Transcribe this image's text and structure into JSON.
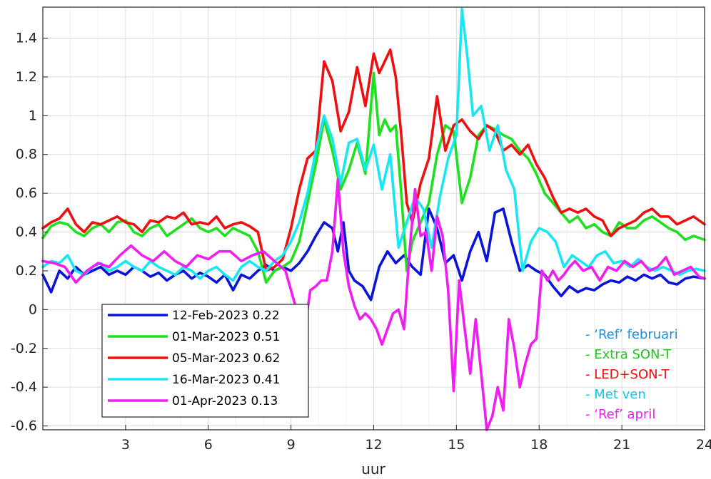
{
  "chart_data": {
    "type": "line",
    "title": "",
    "xlabel": "uur",
    "ylabel": "",
    "xlim": [
      0,
      24
    ],
    "ylim": [
      -0.62,
      1.56
    ],
    "grid": true,
    "x_ticks": [
      3,
      6,
      9,
      12,
      15,
      18,
      21,
      24
    ],
    "x_tick_labels": [
      "3",
      "6",
      "9",
      "12",
      "15",
      "18",
      "21",
      "24"
    ],
    "y_ticks": [
      -0.6,
      -0.4,
      -0.2,
      0,
      0.2,
      0.4,
      0.6,
      0.8,
      1,
      1.2,
      1.4
    ],
    "y_tick_labels": [
      "-0.6",
      "-0.4",
      "-0.2",
      "0",
      "0.2",
      "0.4",
      "0.6",
      "0.8",
      "1",
      "1.2",
      "1.4"
    ],
    "legend_position": "bottom-left",
    "series": [
      {
        "name": "12-Feb-2023",
        "legend_value": "0.22",
        "color": "#0a14d8",
        "x": [
          0,
          0.3,
          0.6,
          0.9,
          1.2,
          1.5,
          1.8,
          2.1,
          2.4,
          2.7,
          3.0,
          3.3,
          3.6,
          3.9,
          4.2,
          4.5,
          4.8,
          5.1,
          5.4,
          5.7,
          6.0,
          6.3,
          6.6,
          6.9,
          7.2,
          7.5,
          7.8,
          8.1,
          8.4,
          8.7,
          9.0,
          9.3,
          9.6,
          9.9,
          10.2,
          10.5,
          10.7,
          10.9,
          11.1,
          11.3,
          11.6,
          11.9,
          12.2,
          12.5,
          12.8,
          13.1,
          13.4,
          13.7,
          14.0,
          14.3,
          14.6,
          14.9,
          15.2,
          15.5,
          15.8,
          16.1,
          16.4,
          16.7,
          17.0,
          17.3,
          17.6,
          17.9,
          18.2,
          18.5,
          18.8,
          19.1,
          19.4,
          19.7,
          20.0,
          20.3,
          20.6,
          20.9,
          21.2,
          21.5,
          21.8,
          22.1,
          22.4,
          22.7,
          23.0,
          23.3,
          23.6,
          24.0
        ],
        "y": [
          0.18,
          0.09,
          0.2,
          0.16,
          0.22,
          0.18,
          0.2,
          0.22,
          0.18,
          0.2,
          0.18,
          0.22,
          0.2,
          0.17,
          0.19,
          0.15,
          0.18,
          0.2,
          0.16,
          0.19,
          0.17,
          0.14,
          0.18,
          0.1,
          0.18,
          0.16,
          0.2,
          0.23,
          0.2,
          0.22,
          0.2,
          0.24,
          0.3,
          0.38,
          0.45,
          0.42,
          0.3,
          0.45,
          0.2,
          0.15,
          0.12,
          0.05,
          0.22,
          0.3,
          0.24,
          0.28,
          0.22,
          0.18,
          0.52,
          0.42,
          0.24,
          0.28,
          0.15,
          0.3,
          0.4,
          0.25,
          0.5,
          0.52,
          0.35,
          0.2,
          0.23,
          0.2,
          0.18,
          0.12,
          0.07,
          0.12,
          0.09,
          0.11,
          0.1,
          0.13,
          0.15,
          0.14,
          0.17,
          0.15,
          0.18,
          0.16,
          0.18,
          0.14,
          0.13,
          0.16,
          0.17,
          0.16
        ]
      },
      {
        "name": "01-Mar-2023",
        "legend_value": "0.51",
        "color": "#1ee01e",
        "x": [
          0,
          0.3,
          0.6,
          0.9,
          1.2,
          1.5,
          1.8,
          2.1,
          2.4,
          2.7,
          3.0,
          3.3,
          3.6,
          3.9,
          4.2,
          4.5,
          4.8,
          5.1,
          5.4,
          5.7,
          6.0,
          6.3,
          6.6,
          6.9,
          7.2,
          7.5,
          7.8,
          8.1,
          8.4,
          8.7,
          9.0,
          9.3,
          9.6,
          9.9,
          10.2,
          10.5,
          10.8,
          11.1,
          11.4,
          11.7,
          12.0,
          12.2,
          12.4,
          12.6,
          12.8,
          13.0,
          13.2,
          13.4,
          13.7,
          14.0,
          14.3,
          14.6,
          14.9,
          15.2,
          15.5,
          15.8,
          16.1,
          16.4,
          16.7,
          17.0,
          17.3,
          17.6,
          17.9,
          18.2,
          18.5,
          18.8,
          19.1,
          19.4,
          19.7,
          20.0,
          20.3,
          20.6,
          20.9,
          21.2,
          21.5,
          21.8,
          22.1,
          22.4,
          22.7,
          23.0,
          23.3,
          23.6,
          24.0
        ],
        "y": [
          0.37,
          0.43,
          0.45,
          0.44,
          0.4,
          0.38,
          0.42,
          0.44,
          0.4,
          0.45,
          0.46,
          0.4,
          0.38,
          0.42,
          0.44,
          0.38,
          0.41,
          0.44,
          0.47,
          0.42,
          0.4,
          0.42,
          0.38,
          0.42,
          0.4,
          0.38,
          0.3,
          0.14,
          0.2,
          0.22,
          0.25,
          0.35,
          0.55,
          0.75,
          0.98,
          0.82,
          0.62,
          0.72,
          0.86,
          0.7,
          1.22,
          0.9,
          0.98,
          0.92,
          0.95,
          0.6,
          0.2,
          0.35,
          0.45,
          0.55,
          0.8,
          0.95,
          0.92,
          0.55,
          0.68,
          0.9,
          0.95,
          0.93,
          0.9,
          0.88,
          0.82,
          0.78,
          0.7,
          0.6,
          0.55,
          0.5,
          0.45,
          0.48,
          0.42,
          0.44,
          0.4,
          0.38,
          0.45,
          0.42,
          0.42,
          0.46,
          0.48,
          0.45,
          0.42,
          0.4,
          0.36,
          0.38,
          0.36
        ]
      },
      {
        "name": "05-Mar-2023",
        "legend_value": "0.62",
        "color": "#ee1010",
        "x": [
          0,
          0.3,
          0.6,
          0.9,
          1.2,
          1.5,
          1.8,
          2.1,
          2.4,
          2.7,
          3.0,
          3.3,
          3.6,
          3.9,
          4.2,
          4.5,
          4.8,
          5.1,
          5.4,
          5.7,
          6.0,
          6.3,
          6.6,
          6.9,
          7.2,
          7.5,
          7.8,
          8.1,
          8.4,
          8.7,
          9.0,
          9.3,
          9.6,
          9.9,
          10.2,
          10.5,
          10.8,
          11.1,
          11.4,
          11.7,
          12.0,
          12.2,
          12.4,
          12.6,
          12.8,
          13.0,
          13.2,
          13.4,
          13.7,
          14.0,
          14.3,
          14.6,
          14.9,
          15.2,
          15.5,
          15.8,
          16.1,
          16.4,
          16.7,
          17.0,
          17.3,
          17.6,
          17.9,
          18.2,
          18.5,
          18.8,
          19.1,
          19.4,
          19.7,
          20.0,
          20.3,
          20.6,
          20.9,
          21.2,
          21.5,
          21.8,
          22.1,
          22.4,
          22.7,
          23.0,
          23.3,
          23.6,
          24.0
        ],
        "y": [
          0.42,
          0.45,
          0.47,
          0.52,
          0.44,
          0.4,
          0.45,
          0.44,
          0.46,
          0.48,
          0.45,
          0.44,
          0.4,
          0.46,
          0.45,
          0.48,
          0.47,
          0.5,
          0.44,
          0.45,
          0.44,
          0.48,
          0.42,
          0.44,
          0.45,
          0.43,
          0.4,
          0.2,
          0.22,
          0.26,
          0.42,
          0.62,
          0.78,
          0.82,
          1.28,
          1.18,
          0.92,
          1.02,
          1.25,
          1.05,
          1.32,
          1.22,
          1.28,
          1.34,
          1.2,
          0.9,
          0.55,
          0.45,
          0.65,
          0.78,
          1.1,
          0.82,
          0.95,
          0.98,
          0.92,
          0.88,
          0.95,
          0.92,
          0.82,
          0.85,
          0.8,
          0.85,
          0.75,
          0.68,
          0.58,
          0.5,
          0.52,
          0.5,
          0.52,
          0.48,
          0.46,
          0.38,
          0.42,
          0.44,
          0.46,
          0.5,
          0.52,
          0.48,
          0.48,
          0.44,
          0.46,
          0.48,
          0.44
        ]
      },
      {
        "name": "16-Mar-2023",
        "legend_value": "0.41",
        "color": "#1ae6f2",
        "x": [
          0,
          0.3,
          0.6,
          0.9,
          1.2,
          1.5,
          1.8,
          2.1,
          2.4,
          2.7,
          3.0,
          3.3,
          3.6,
          3.9,
          4.2,
          4.5,
          4.8,
          5.1,
          5.4,
          5.7,
          6.0,
          6.3,
          6.6,
          6.9,
          7.2,
          7.5,
          7.8,
          8.1,
          8.4,
          8.7,
          9.0,
          9.3,
          9.6,
          9.9,
          10.2,
          10.5,
          10.8,
          11.1,
          11.4,
          11.7,
          12.0,
          12.3,
          12.6,
          12.9,
          13.2,
          13.5,
          13.8,
          14.1,
          14.4,
          14.7,
          15.0,
          15.2,
          15.4,
          15.6,
          15.9,
          16.2,
          16.5,
          16.8,
          17.1,
          17.4,
          17.7,
          18.0,
          18.3,
          18.6,
          18.9,
          19.2,
          19.5,
          19.8,
          20.1,
          20.4,
          20.7,
          21.0,
          21.3,
          21.6,
          21.9,
          22.2,
          22.5,
          22.8,
          23.1,
          23.4,
          23.7,
          24.0
        ],
        "y": [
          0.22,
          0.25,
          0.24,
          0.28,
          0.2,
          0.18,
          0.22,
          0.24,
          0.2,
          0.22,
          0.25,
          0.22,
          0.2,
          0.25,
          0.22,
          0.2,
          0.18,
          0.22,
          0.2,
          0.16,
          0.2,
          0.22,
          0.18,
          0.15,
          0.22,
          0.25,
          0.22,
          0.2,
          0.25,
          0.28,
          0.35,
          0.45,
          0.6,
          0.82,
          1.0,
          0.88,
          0.65,
          0.86,
          0.88,
          0.72,
          0.85,
          0.62,
          0.8,
          0.32,
          0.45,
          0.58,
          0.52,
          0.32,
          0.58,
          0.78,
          0.9,
          1.55,
          1.3,
          1.0,
          1.05,
          0.82,
          0.95,
          0.72,
          0.62,
          0.2,
          0.35,
          0.42,
          0.4,
          0.35,
          0.22,
          0.28,
          0.25,
          0.22,
          0.28,
          0.3,
          0.24,
          0.25,
          0.22,
          0.26,
          0.22,
          0.2,
          0.22,
          0.2,
          0.18,
          0.2,
          0.21,
          0.2
        ]
      },
      {
        "name": "01-Apr-2023",
        "legend_value": "0.13",
        "color": "#f01ef0",
        "x": [
          0,
          0.4,
          0.8,
          1.2,
          1.6,
          2.0,
          2.4,
          2.8,
          3.2,
          3.6,
          4.0,
          4.4,
          4.8,
          5.2,
          5.6,
          6.0,
          6.4,
          6.8,
          7.2,
          7.6,
          8.0,
          8.4,
          8.8,
          9.2,
          9.5,
          9.7,
          9.9,
          10.1,
          10.3,
          10.5,
          10.7,
          10.9,
          11.1,
          11.3,
          11.5,
          11.7,
          11.9,
          12.1,
          12.3,
          12.5,
          12.7,
          12.9,
          13.1,
          13.3,
          13.5,
          13.7,
          13.9,
          14.1,
          14.3,
          14.5,
          14.7,
          14.9,
          15.1,
          15.3,
          15.5,
          15.7,
          15.9,
          16.1,
          16.3,
          16.5,
          16.7,
          16.9,
          17.1,
          17.3,
          17.5,
          17.7,
          17.9,
          18.1,
          18.3,
          18.5,
          18.7,
          18.9,
          19.1,
          19.3,
          19.6,
          19.9,
          20.2,
          20.5,
          20.8,
          21.1,
          21.4,
          21.7,
          22.0,
          22.3,
          22.6,
          22.9,
          23.2,
          23.5,
          23.8,
          24.0
        ],
        "y": [
          0.25,
          0.24,
          0.22,
          0.14,
          0.2,
          0.24,
          0.22,
          0.28,
          0.33,
          0.28,
          0.25,
          0.3,
          0.25,
          0.22,
          0.28,
          0.26,
          0.3,
          0.3,
          0.25,
          0.28,
          0.3,
          0.25,
          0.2,
          0.0,
          -0.1,
          0.1,
          0.12,
          0.15,
          0.15,
          0.3,
          0.67,
          0.3,
          0.12,
          0.02,
          -0.05,
          -0.02,
          -0.05,
          -0.1,
          -0.18,
          -0.1,
          -0.02,
          0.0,
          -0.1,
          0.3,
          0.62,
          0.38,
          0.4,
          0.2,
          0.48,
          0.38,
          0.1,
          -0.42,
          0.15,
          -0.1,
          -0.33,
          -0.05,
          -0.33,
          -0.62,
          -0.55,
          -0.4,
          -0.52,
          -0.05,
          -0.2,
          -0.4,
          -0.28,
          -0.18,
          -0.15,
          0.2,
          0.15,
          0.2,
          0.15,
          0.18,
          0.22,
          0.25,
          0.2,
          0.22,
          0.15,
          0.22,
          0.2,
          0.25,
          0.22,
          0.25,
          0.2,
          0.22,
          0.27,
          0.18,
          0.2,
          0.22,
          0.17,
          0.16
        ]
      }
    ],
    "annotations": [
      {
        "text": "- ‘Ref’ februari",
        "color": "#1f8fd6"
      },
      {
        "text": "- Extra SON-T",
        "color": "#22c422"
      },
      {
        "text": "- LED+SON-T",
        "color": "#ee1010"
      },
      {
        "text": "- Met ven",
        "color": "#12c8e0"
      },
      {
        "text": "- ‘Ref’ april",
        "color": "#f01ef0"
      }
    ]
  }
}
